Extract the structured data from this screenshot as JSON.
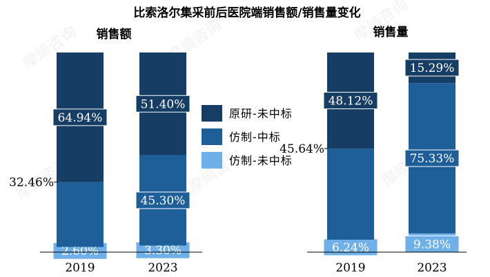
{
  "title": "比索洛尔集采前后医院端销售额/销售量变化",
  "watermark": "摩熵咨询",
  "colors": {
    "原研-未中标": "#163d63",
    "仿制-中标": "#1f5f99",
    "仿制-未中标": "#6fb0e8"
  },
  "legend": [
    "原研-未中标",
    "仿制-中标",
    "仿制-未中标"
  ],
  "chart_data": [
    {
      "type": "bar",
      "stacked": true,
      "title": "销售额",
      "categories": [
        "2019",
        "2023"
      ],
      "series": [
        {
          "name": "仿制-未中标",
          "values": [
            2.6,
            3.3
          ],
          "labels": [
            "2.60%",
            "3.30%"
          ]
        },
        {
          "name": "仿制-中标",
          "values": [
            32.46,
            45.3
          ],
          "labels": [
            "32.46%",
            "45.30%"
          ]
        },
        {
          "name": "原研-未中标",
          "values": [
            64.94,
            51.4
          ],
          "labels": [
            "64.94%",
            "51.40%"
          ]
        }
      ],
      "ylim": [
        0,
        100
      ]
    },
    {
      "type": "bar",
      "stacked": true,
      "title": "销售量",
      "categories": [
        "2019",
        "2023"
      ],
      "series": [
        {
          "name": "仿制-未中标",
          "values": [
            6.24,
            9.38
          ],
          "labels": [
            "6.24%",
            "9.38%"
          ]
        },
        {
          "name": "仿制-中标",
          "values": [
            45.64,
            75.33
          ],
          "labels": [
            "45.64%",
            "75.33%"
          ]
        },
        {
          "name": "原研-未中标",
          "values": [
            48.12,
            15.29
          ],
          "labels": [
            "48.12%",
            "15.29%"
          ]
        }
      ],
      "ylim": [
        0,
        100
      ]
    }
  ]
}
